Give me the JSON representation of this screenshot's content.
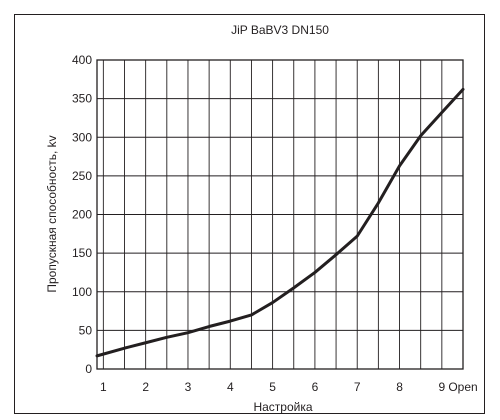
{
  "chart_data": {
    "type": "line",
    "title": "JiP BaBV3 DN150",
    "xlabel": "Настройка",
    "ylabel": "Пропускная способность, kv",
    "xlim": [
      0.85,
      9.5
    ],
    "ylim": [
      0,
      400
    ],
    "x_ticks": [
      1,
      2,
      3,
      4,
      5,
      6,
      7,
      8,
      9,
      9.5
    ],
    "x_tick_labels": [
      "1",
      "2",
      "3",
      "4",
      "5",
      "6",
      "7",
      "8",
      "9",
      "Open"
    ],
    "y_ticks": [
      0,
      50,
      100,
      150,
      200,
      250,
      300,
      350,
      400
    ],
    "grid": true,
    "colors": {
      "line": "#231f20",
      "grid": "#231f20"
    },
    "series": [
      {
        "x": [
          0.85,
          1.5,
          2,
          2.5,
          3,
          3.5,
          4,
          4.5,
          5,
          5.5,
          6,
          6.5,
          7,
          7.5,
          8,
          8.5,
          9,
          9.5
        ],
        "y": [
          17,
          27,
          34,
          41,
          47,
          55,
          62,
          70,
          86,
          105,
          125,
          148,
          172,
          215,
          263,
          302,
          332,
          362
        ]
      }
    ]
  }
}
